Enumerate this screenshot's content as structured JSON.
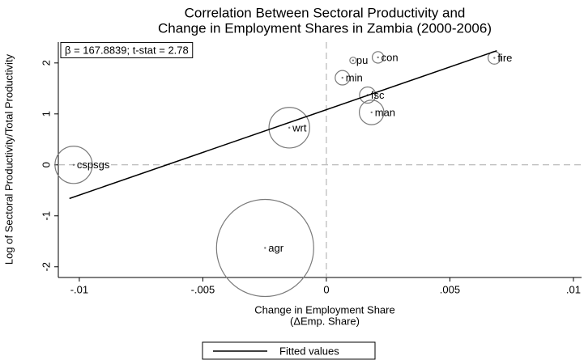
{
  "chart_data": {
    "type": "scatter",
    "title": [
      "Correlation Between Sectoral Productivity and",
      "Change in Employment Shares in Zambia (2000-2006)"
    ],
    "xlabel": [
      "Change in Employment Share",
      "(ΔEmp. Share)"
    ],
    "ylabel": "Log of Sectoral Productivity/Total Productivity",
    "annotation": "β = 167.8839; t-stat = 2.78",
    "labels": [
      "cspsgs",
      "wrt",
      "agr",
      "min",
      "pu",
      "con",
      "fsc",
      "man",
      "fire"
    ],
    "x": [
      -0.01023,
      -0.0015,
      -0.00248,
      0.00065,
      0.00108,
      0.00209,
      0.00167,
      0.00183,
      0.0068
    ],
    "values": [
      0.0,
      0.73,
      -1.63,
      1.71,
      2.05,
      2.11,
      1.37,
      1.03,
      2.1
    ],
    "sizes": [
      5.3,
      6.3,
      36,
      0.8,
      0.16,
      0.5,
      1.0,
      2.3,
      0.6
    ],
    "color": "#7a7a7a",
    "fit": {
      "name": "Fitted values",
      "color": "#000000",
      "x": [
        -0.0104,
        0.0069
      ],
      "values": [
        -0.66,
        2.24
      ]
    },
    "xlim": [
      -0.01085,
      0.01033
    ],
    "ylim": [
      -2.21,
      2.41
    ],
    "xticks": [
      {
        "value": -0.01,
        "label": "-.01"
      },
      {
        "value": -0.005,
        "label": "-.005"
      },
      0,
      {
        "value": 0.005,
        "label": ".005"
      },
      {
        "value": 0.01,
        "label": ".01"
      }
    ],
    "yticks": [
      -2,
      -1,
      0,
      1,
      2
    ],
    "reference_lines": true,
    "legend": "bottom"
  }
}
